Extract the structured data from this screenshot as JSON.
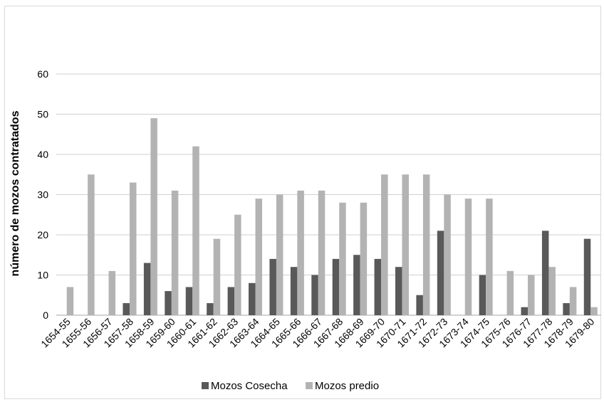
{
  "chart_data": {
    "type": "bar",
    "title": "",
    "xlabel": "",
    "ylabel": "número de mozos contratados",
    "ylim": [
      0,
      60
    ],
    "yticks": [
      0,
      10,
      20,
      30,
      40,
      50,
      60
    ],
    "grid": true,
    "legend_position": "bottom",
    "categories": [
      "1654-55",
      "1655-56",
      "1656-57",
      "1657-58",
      "1658-59",
      "1659-60",
      "1660-61",
      "1661-62",
      "1662-63",
      "1663-64",
      "1664-65",
      "1665-66",
      "1666-67",
      "1667-68",
      "1668-69",
      "1669-70",
      "1670-71",
      "1671-72",
      "1672-73",
      "1673-74",
      "1674-75",
      "1675-76",
      "1676-77",
      "1677-78",
      "1678-79",
      "1679-80"
    ],
    "series": [
      {
        "name": "Mozos Cosecha",
        "color": "#595959",
        "values": [
          0,
          0,
          0,
          3,
          13,
          6,
          7,
          3,
          7,
          8,
          14,
          12,
          10,
          14,
          15,
          14,
          12,
          5,
          21,
          0,
          10,
          0,
          2,
          21,
          3,
          19
        ]
      },
      {
        "name": "Mozos predio",
        "color": "#b3b3b3",
        "values": [
          7,
          35,
          11,
          33,
          49,
          31,
          42,
          19,
          25,
          29,
          30,
          31,
          31,
          28,
          28,
          35,
          35,
          35,
          30,
          29,
          29,
          11,
          10,
          12,
          7,
          2
        ]
      }
    ]
  }
}
